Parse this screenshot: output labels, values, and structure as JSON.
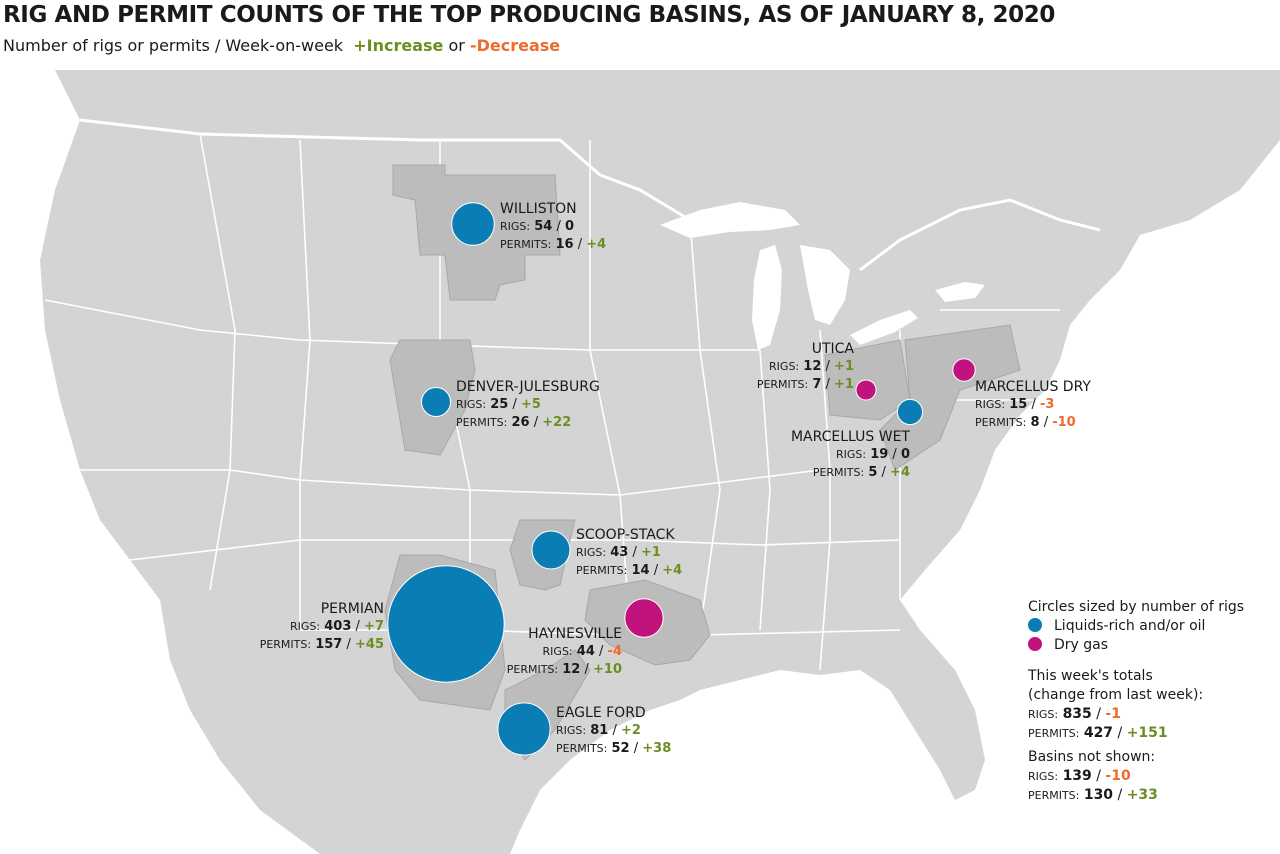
{
  "title": "RIG AND PERMIT COUNTS OF THE TOP PRODUCING BASINS, AS OF JANUARY 8, 2020",
  "subtitle": {
    "text": "Number of rigs or permits / Week-on-week",
    "increase": "+Increase",
    "or": "or",
    "decrease": "-Decrease"
  },
  "colors": {
    "oil": "#0a7db5",
    "gas": "#c2127d",
    "increase": "#6b8e23",
    "decrease": "#ec6b2d",
    "land": "#d4d4d4",
    "basin": "#bcbcbc",
    "border": "#ffffff"
  },
  "labels": {
    "rigs": "RIGS:",
    "permits": "PERMITS:",
    "sep": "/"
  },
  "basins": [
    {
      "name": "WILLISTON",
      "type": "oil",
      "rigs": "54",
      "rigs_change": "0",
      "permits": "16",
      "permits_change": "+4"
    },
    {
      "name": "DENVER-JULESBURG",
      "type": "oil",
      "rigs": "25",
      "rigs_change": "+5",
      "permits": "26",
      "permits_change": "+22"
    },
    {
      "name": "UTICA",
      "type": "gas",
      "rigs": "12",
      "rigs_change": "+1",
      "permits": "7",
      "permits_change": "+1"
    },
    {
      "name": "MARCELLUS DRY",
      "type": "gas",
      "rigs": "15",
      "rigs_change": "-3",
      "permits": "8",
      "permits_change": "-10"
    },
    {
      "name": "MARCELLUS WET",
      "type": "oil",
      "rigs": "19",
      "rigs_change": "0",
      "permits": "5",
      "permits_change": "+4"
    },
    {
      "name": "SCOOP-STACK",
      "type": "oil",
      "rigs": "43",
      "rigs_change": "+1",
      "permits": "14",
      "permits_change": "+4"
    },
    {
      "name": "PERMIAN",
      "type": "oil",
      "rigs": "403",
      "rigs_change": "+7",
      "permits": "157",
      "permits_change": "+45"
    },
    {
      "name": "HAYNESVILLE",
      "type": "gas",
      "rigs": "44",
      "rigs_change": "-4",
      "permits": "12",
      "permits_change": "+10"
    },
    {
      "name": "EAGLE FORD",
      "type": "oil",
      "rigs": "81",
      "rigs_change": "+2",
      "permits": "52",
      "permits_change": "+38"
    }
  ],
  "legend": {
    "heading": "Circles sized by number of rigs",
    "oil_label": "Liquids-rich and/or oil",
    "gas_label": "Dry gas",
    "totals_heading_1": "This week's totals",
    "totals_heading_2": "(change from last week):",
    "totals_rigs": "835",
    "totals_rigs_change": "-1",
    "totals_permits": "427",
    "totals_permits_change": "+151",
    "not_shown_heading": "Basins not shown:",
    "not_shown_rigs": "139",
    "not_shown_rigs_change": "-10",
    "not_shown_permits": "130",
    "not_shown_permits_change": "+33"
  }
}
